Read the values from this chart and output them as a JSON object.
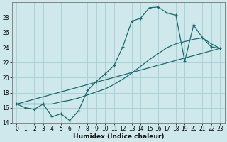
{
  "title": "",
  "xlabel": "Humidex (Indice chaleur)",
  "ylabel": "",
  "bg_color": "#cfe8eb",
  "grid_color": "#a8cdd4",
  "line_color": "#1a6b6b",
  "line1_x": [
    0,
    1,
    2,
    3,
    4,
    5,
    6,
    7,
    8,
    9,
    10,
    11,
    12,
    13,
    14,
    15,
    16,
    17,
    18,
    19,
    20,
    21,
    22,
    23
  ],
  "line1_y": [
    16.5,
    16.0,
    15.8,
    16.5,
    14.8,
    15.2,
    14.3,
    15.6,
    18.3,
    19.5,
    20.5,
    21.6,
    24.1,
    27.5,
    27.9,
    29.3,
    29.4,
    28.6,
    28.3,
    22.2,
    27.0,
    25.3,
    24.1,
    23.9
  ],
  "line2_x": [
    0,
    1,
    2,
    3,
    4,
    5,
    6,
    7,
    8,
    9,
    10,
    11,
    12,
    13,
    14,
    15,
    16,
    17,
    18,
    19,
    20,
    21,
    22,
    23
  ],
  "line2_y": [
    16.5,
    16.5,
    16.5,
    16.5,
    16.5,
    16.8,
    17.0,
    17.3,
    17.7,
    18.1,
    18.5,
    19.1,
    19.8,
    20.6,
    21.5,
    22.4,
    23.2,
    24.0,
    24.5,
    24.8,
    25.1,
    25.3,
    24.5,
    23.9
  ],
  "line3_x": [
    0,
    23
  ],
  "line3_y": [
    16.5,
    23.9
  ],
  "xlim": [
    -0.5,
    23.5
  ],
  "ylim": [
    14,
    30
  ],
  "yticks": [
    14,
    16,
    18,
    20,
    22,
    24,
    26,
    28
  ],
  "xticks": [
    0,
    1,
    2,
    3,
    4,
    5,
    6,
    7,
    8,
    9,
    10,
    11,
    12,
    13,
    14,
    15,
    16,
    17,
    18,
    19,
    20,
    21,
    22,
    23
  ],
  "xlabel_fontsize": 6.5,
  "tick_fontsize": 5.5
}
